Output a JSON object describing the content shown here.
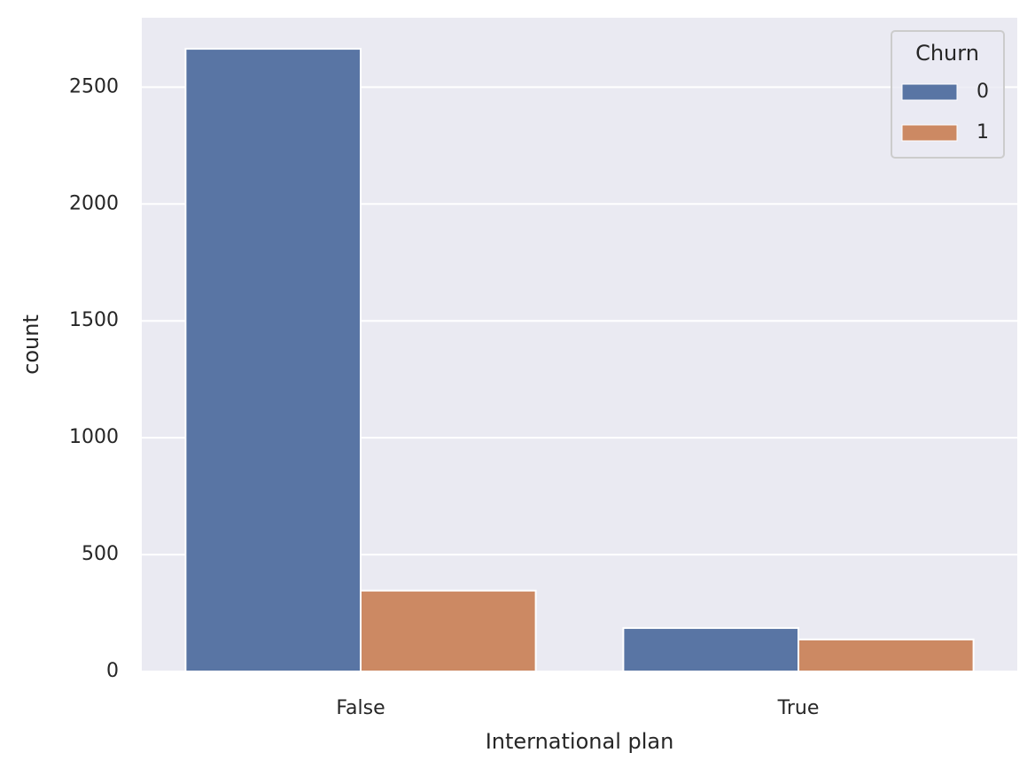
{
  "chart_data": {
    "type": "bar",
    "x_label": "International plan",
    "y_label": "count",
    "categories": [
      "False",
      "True"
    ],
    "legend_title": "Churn",
    "legend": "upper right",
    "series": [
      {
        "name": "0",
        "color": "#5975a4",
        "values": [
          2664,
          186
        ]
      },
      {
        "name": "1",
        "color": "#cc8963",
        "values": [
          346,
          137
        ]
      }
    ],
    "ylim": [
      0,
      2797
    ],
    "yticks": [
      0,
      500,
      1000,
      1500,
      2000,
      2500
    ],
    "grid": true
  }
}
